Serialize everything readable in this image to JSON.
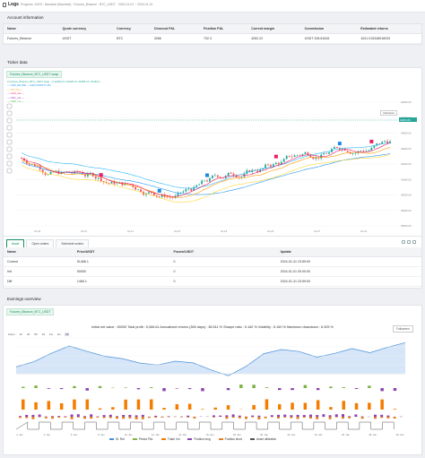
{
  "topbar": {
    "title": "Logs",
    "crumb": "Progress: 100% · Backtest (Backtest) · Futures_Binance · BTC_USDT · 2024-01-01 ~ 2024-01-31"
  },
  "account": {
    "title": "Account information",
    "headers": [
      "Name",
      "Quote currency",
      "Currency",
      "Closeout P&L",
      "Position P&L",
      "Current margin",
      "Commission",
      "Estimated returns"
    ],
    "row": [
      "Futures_Binance",
      "USDT",
      "BTC",
      "3266",
      "732.3",
      "4262.22",
      "USDT 208.81816",
      "1041.015348916033"
    ]
  },
  "ticker": {
    "title": "Ticker data",
    "symbol_chip": "Futures_Binance_BTC_USDT swap",
    "price_tag": "43251.69",
    "y_ticks": [
      "46000.00",
      "45000.00",
      "44000.00",
      "43000.00",
      "42000.00",
      "41000.00",
      "40000.00",
      "39000.00",
      "38000.00"
    ],
    "x_ticks": [
      "01-03",
      "01-05",
      "01-07",
      "01-09",
      "01-11",
      "01-13",
      "01-15",
      "01-17",
      "01-19",
      "01-21",
      "01-23",
      "01-25",
      "01-27",
      "01-29",
      "01-31"
    ],
    "legend": [
      {
        "text": "● Futures_Binance_BTC_USDT swap · O 42283.3 H 42420.0 L 41985.0 C 42160.0 ... ",
        "color": "#26a69a"
      },
      {
        "text": "— rsi30_MA (59)  —  k(20) 42160 5 (18 )",
        "color": "#2196f3"
      },
      {
        "text": "— rsi7_ma  —",
        "color": "#ff9800"
      },
      {
        "text": "— rsi14_ma  —",
        "color": "#e91e63"
      },
      {
        "text": "— rsi21_ma  —",
        "color": "#9c27b0"
      },
      {
        "text": "— rsi28_ma  —",
        "color": "#4caf50"
      }
    ],
    "indicator_label": "Indicators"
  },
  "status": {
    "title": "Status Info",
    "tabs": [
      "Asset",
      "Open orders",
      "Schedule orders"
    ],
    "headers": [
      "Name",
      "Price/USDT",
      "Frozen/USDT",
      "Update"
    ],
    "rows": [
      {
        "name": "Current",
        "price": "51466.1",
        "frozen": "0",
        "update": "2024-01-31 23:59:00",
        "cls": "link"
      },
      {
        "name": "Init",
        "price": "50000",
        "frozen": "0",
        "update": "2024-01-01 00:00:00",
        "cls": ""
      },
      {
        "name": "Diff",
        "price": "1466.1",
        "frozen": "0",
        "update": "2024-01-31 23:59:00",
        "cls": "red"
      }
    ]
  },
  "earnings": {
    "title": "Earnings overview",
    "symbol_chip": "Futures_Binance_BTC_USDT",
    "stats": "Initial net value : 50000 Total profit : 5,066.61 Annualized returns (365 days) : 38.511 % Sharpe ratio : 5.162 % Volatility : 5.160 % Maximum drawdown : 6.325 %",
    "zoom_label": "Zoom",
    "zoom_options": [
      "1h",
      "3h",
      "8h",
      "1d",
      "1w",
      "1m",
      "All"
    ],
    "fullscreen": "Fullscreen",
    "x_ticks": [
      "2. Jan",
      "4. Jan",
      "6. Jan",
      "8. Jan",
      "10. Jan",
      "12. Jan",
      "14. Jan",
      "16. Jan",
      "18. Jan",
      "20. Jan",
      "22. Jan",
      "24. Jan",
      "26. Jan",
      "28. Jan",
      "30. Jan"
    ],
    "legend": [
      {
        "label": "St. Ret",
        "color": "#4a90d9"
      },
      {
        "label": "Period P&L",
        "color": "#7cb342"
      },
      {
        "label": "Trade Vol",
        "color": "#f57c00"
      },
      {
        "label": "Position long",
        "color": "#8e44ad"
      },
      {
        "label": "Position short",
        "color": "#e67e22"
      },
      {
        "label": "Asset utilization",
        "color": "#555555"
      }
    ]
  },
  "colors": {
    "accent": "#138f5c",
    "up": "#26a69a",
    "down": "#ef5350"
  }
}
